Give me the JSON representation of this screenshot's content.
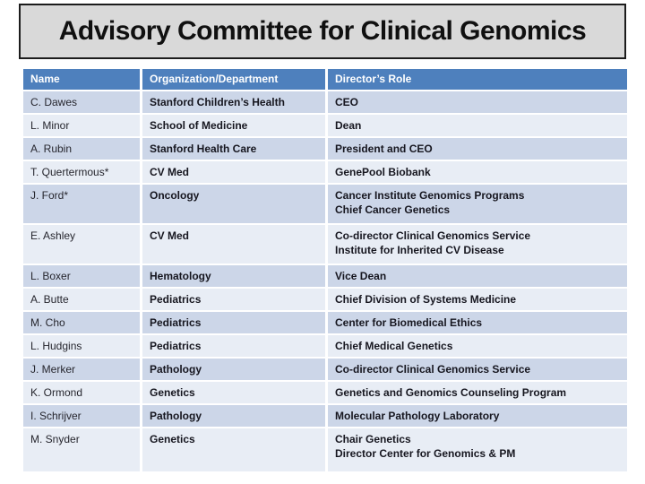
{
  "slide": {
    "title": "Advisory Committee for Clinical Genomics"
  },
  "table": {
    "headers": [
      "Name",
      "Organization/Department",
      "Director’s Role"
    ],
    "rows": [
      {
        "name": "C. Dawes",
        "org": "Stanford Children’s Health",
        "role": "CEO"
      },
      {
        "name": "L. Minor",
        "org": "School of Medicine",
        "role": "Dean"
      },
      {
        "name": "A. Rubin",
        "org": "Stanford Health Care",
        "role": "President and CEO"
      },
      {
        "name": "T. Quertermous*",
        "org": "CV Med",
        "role": "GenePool Biobank"
      },
      {
        "name": "J. Ford*",
        "org": "Oncology",
        "role": "Cancer Institute Genomics Programs",
        "role2": "Chief Cancer Genetics"
      },
      {
        "name": "E. Ashley",
        "org": "CV Med",
        "role": "Co-director Clinical Genomics Service",
        "role2": "Institute for Inherited CV Disease"
      },
      {
        "name": "L. Boxer",
        "org": "Hematology",
        "role": "Vice Dean"
      },
      {
        "name": "A. Butte",
        "org": "Pediatrics",
        "role": "Chief Division of Systems Medicine"
      },
      {
        "name": "M. Cho",
        "org": "Pediatrics",
        "role": "Center for Biomedical Ethics"
      },
      {
        "name": "L. Hudgins",
        "org": "Pediatrics",
        "role": "Chief Medical Genetics"
      },
      {
        "name": "J. Merker",
        "org": "Pathology",
        "role": "Co-director Clinical Genomics Service"
      },
      {
        "name": "K. Ormond",
        "org": "Genetics",
        "role": "Genetics and Genomics Counseling Program"
      },
      {
        "name": "I. Schrijver",
        "org": "Pathology",
        "role": "Molecular Pathology Laboratory"
      },
      {
        "name": "M. Snyder",
        "org": "Genetics",
        "role": "Chair Genetics",
        "role2": "Director Center for Genomics & PM"
      }
    ]
  },
  "colors": {
    "header_bg": "#4e80bd",
    "band_dark": "#ccd6e8",
    "band_light": "#e8edf5",
    "title_box_bg": "#d9d9d9",
    "title_box_border": "#1c1c1c"
  }
}
